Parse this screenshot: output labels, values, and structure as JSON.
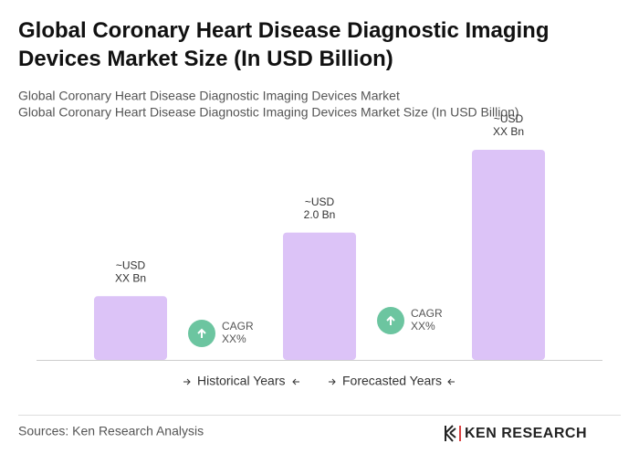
{
  "chart_data": {
    "type": "bar",
    "title": "Global Coronary Heart Disease Diagnostic Imaging Devices Market Size (In USD Billion)",
    "subtitle": [
      "Global Coronary Heart Disease Diagnostic Imaging Devices Market",
      "Global Coronary Heart Disease Diagnostic Imaging Devices Market Size (In USD Billion)"
    ],
    "categories": [
      null,
      null,
      null
    ],
    "values": [
      1.0,
      2.0,
      3.3
    ],
    "value_labels": [
      [
        "~USD",
        "XX Bn"
      ],
      [
        "~USD",
        "2.0 Bn"
      ],
      [
        "~USD",
        "XX Bn"
      ]
    ],
    "color": "#dcc3f7",
    "ylim": [
      0,
      3.3
    ],
    "annotations": [
      [
        "CAGR",
        "XX%"
      ],
      [
        "CAGR",
        "XX%"
      ]
    ],
    "legend": [
      "Historical Years",
      "Forecasted Years"
    ],
    "source": "Sources: Ken Research Analysis",
    "logo": "KEN RESEARCH"
  }
}
